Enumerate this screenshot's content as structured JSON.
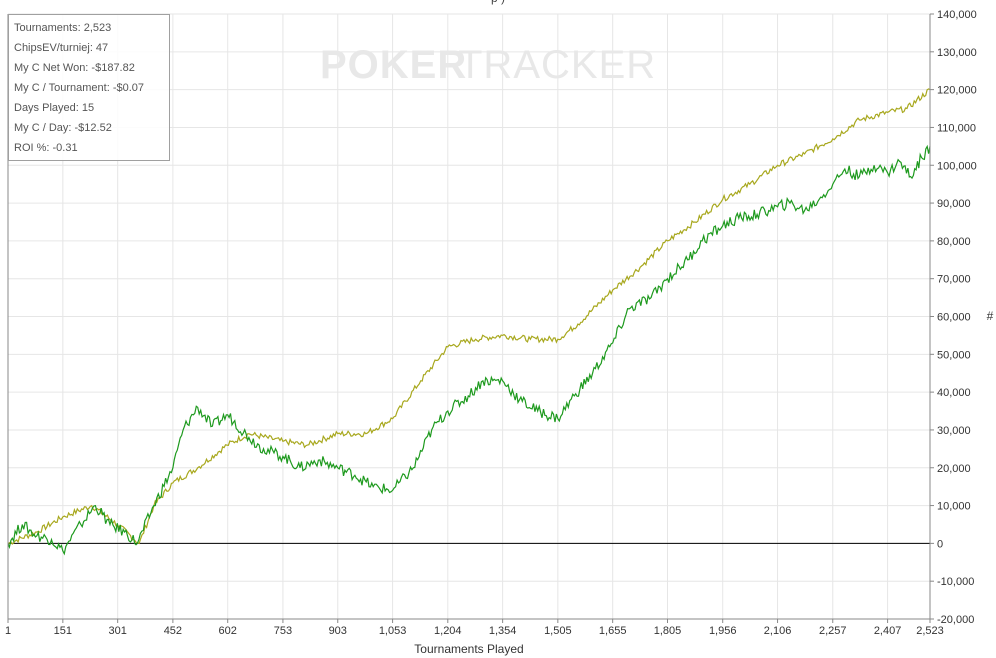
{
  "header": {
    "title_fragment": "p                                           )"
  },
  "stats": [
    "Tournaments: 2,523",
    "ChipsEV/turniej: 47",
    "My C Net Won: -$187.82",
    "My C / Tournament: -$0.07",
    "Days Played: 15",
    "My C / Day: -$12.52",
    "ROI %: -0.31"
  ],
  "watermark": {
    "strong": "POKER",
    "light": "TRACKER"
  },
  "colors": {
    "ev_line": "#a8a81e",
    "net_line": "#1e9a1e",
    "zero_line": "#000000",
    "grid": "#e6e6e6"
  },
  "chart_data": {
    "type": "line",
    "xlabel": "Tournaments Played",
    "ylabel": "#",
    "xlim": [
      1,
      2523
    ],
    "ylim": [
      -20000,
      140000
    ],
    "x_ticks": [
      "1",
      "151",
      "301",
      "452",
      "602",
      "753",
      "903",
      "1,053",
      "1,204",
      "1,354",
      "1,505",
      "1,655",
      "1,805",
      "1,956",
      "2,106",
      "2,257",
      "2,407",
      "2,523"
    ],
    "x_tick_values": [
      1,
      151,
      301,
      452,
      602,
      753,
      903,
      1053,
      1204,
      1354,
      1505,
      1655,
      1805,
      1956,
      2106,
      2257,
      2407,
      2523
    ],
    "y_ticks": [
      "-20,000",
      "-10,000",
      "0",
      "10,000",
      "20,000",
      "30,000",
      "40,000",
      "50,000",
      "60,000",
      "70,000",
      "80,000",
      "90,000",
      "100,000",
      "110,000",
      "120,000",
      "130,000",
      "140,000"
    ],
    "y_tick_values": [
      -20000,
      -10000,
      0,
      10000,
      20000,
      30000,
      40000,
      50000,
      60000,
      70000,
      80000,
      90000,
      100000,
      110000,
      120000,
      130000,
      140000
    ],
    "grid": true,
    "series": [
      {
        "color": "#a8a81e",
        "x": [
          1,
          80,
          151,
          230,
          300,
          360,
          400,
          452,
          520,
          600,
          660,
          753,
          820,
          903,
          980,
          1053,
          1130,
          1204,
          1280,
          1354,
          1430,
          1505,
          1560,
          1655,
          1730,
          1805,
          1880,
          1956,
          2030,
          2106,
          2180,
          2257,
          2330,
          2407,
          2460,
          2523
        ],
        "y": [
          0,
          3000,
          7000,
          10000,
          5000,
          0,
          10000,
          16000,
          20000,
          26000,
          29000,
          27000,
          26000,
          29000,
          29000,
          33000,
          43000,
          52000,
          54000,
          55000,
          54000,
          54000,
          58000,
          67000,
          73000,
          80000,
          85000,
          91000,
          95000,
          100000,
          103000,
          107000,
          112000,
          114000,
          115000,
          120000
        ]
      },
      {
        "color": "#1e9a1e",
        "x": [
          1,
          40,
          80,
          120,
          151,
          200,
          240,
          280,
          320,
          355,
          400,
          452,
          480,
          520,
          560,
          602,
          660,
          700,
          753,
          800,
          850,
          903,
          950,
          1000,
          1053,
          1110,
          1160,
          1204,
          1260,
          1300,
          1354,
          1400,
          1450,
          1505,
          1550,
          1600,
          1655,
          1700,
          1760,
          1805,
          1860,
          1900,
          1956,
          2000,
          2050,
          2106,
          2140,
          2180,
          2220,
          2257,
          2290,
          2330,
          2370,
          2407,
          2440,
          2470,
          2500,
          2523
        ],
        "y": [
          0,
          5000,
          2000,
          1000,
          -2000,
          5000,
          10000,
          5000,
          3000,
          0,
          10000,
          20000,
          30000,
          36000,
          31000,
          34000,
          28000,
          25000,
          23000,
          20000,
          22000,
          20000,
          18000,
          15000,
          14000,
          20000,
          30000,
          35000,
          39000,
          43000,
          43000,
          38000,
          35000,
          33000,
          39000,
          45000,
          53000,
          62000,
          65000,
          70000,
          75000,
          80000,
          84000,
          86000,
          87000,
          89000,
          90000,
          88000,
          91000,
          95000,
          99000,
          97000,
          100000,
          98000,
          101000,
          97000,
          102000,
          105000
        ]
      }
    ]
  }
}
